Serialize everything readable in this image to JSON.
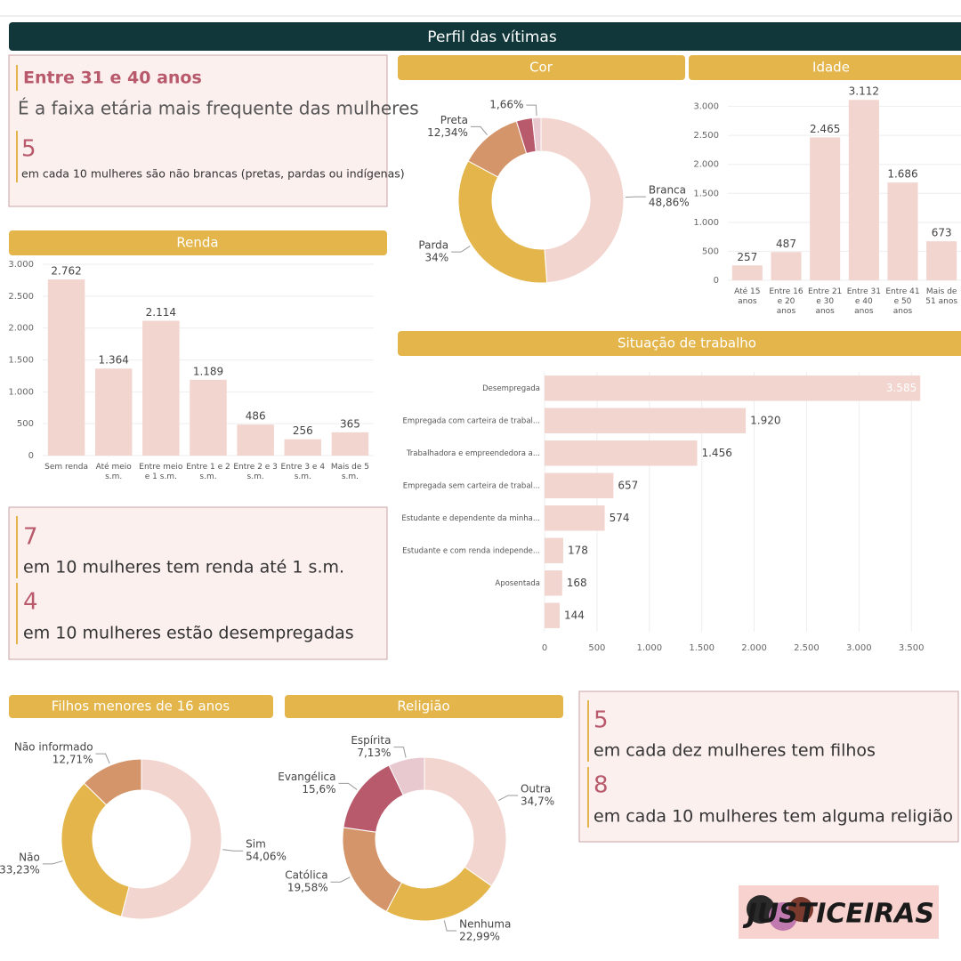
{
  "title": "Perfil das vítimas",
  "cards": [
    {
      "items": [
        {
          "number": "Entre 31 e 40 anos",
          "text": "É a faixa etária mais frequente das mulheres"
        },
        {
          "number": "5",
          "text": "em cada 10 mulheres são não brancas (pretas, pardas ou indígenas)"
        }
      ]
    },
    {
      "items": [
        {
          "number": "7",
          "text": "em 10 mulheres tem renda até 1 s.m."
        },
        {
          "number": "4",
          "text": "em 10 mulheres estão desempregadas"
        }
      ]
    },
    {
      "items": [
        {
          "number": "5",
          "text": "em cada dez mulheres tem filhos"
        },
        {
          "number": "8",
          "text": "em cada 10 mulheres tem alguma religião"
        }
      ]
    }
  ],
  "logo": "JUSTICEIRAS",
  "chart_data": [
    {
      "type": "donut",
      "title": "Cor",
      "categories": [
        "Branca",
        "Parda",
        "Preta",
        null,
        null
      ],
      "values": [
        48.86,
        34,
        12.34,
        3.14,
        1.66
      ],
      "value_labels": [
        "48,86%",
        "34%",
        "12,34%",
        null,
        "1,66%"
      ],
      "colors": [
        "#f2d5cf",
        "#e3b54a",
        "#d4956a",
        "#b85a6c",
        "#e8c9cf"
      ]
    },
    {
      "type": "bar",
      "title": "Idade",
      "categories": [
        "Até 15 anos",
        "Entre 16 e 20 anos",
        "Entre 21 e 30 anos",
        "Entre 31 e 40 anos",
        "Entre 41 e 50 anos",
        "Mais de 51 anos"
      ],
      "values": [
        257,
        487,
        2465,
        3112,
        1686,
        673
      ],
      "value_labels": [
        "257",
        "487",
        "2.465",
        "3.112",
        "1.686",
        "673"
      ],
      "color": "#f2d5cf",
      "ylim": [
        0,
        3300
      ],
      "yticks": [
        0,
        500,
        {
          "value": 1000,
          "label": "1.000"
        },
        {
          "value": 1500,
          "label": "1.500"
        },
        {
          "value": 2000,
          "label": "2.000"
        },
        {
          "value": 2500,
          "label": "2.500"
        },
        {
          "value": 3000,
          "label": "3.000"
        }
      ]
    },
    {
      "type": "bar",
      "title": "Renda",
      "categories": [
        "Sem renda",
        "Até meio s.m.",
        "Entre meio e 1 s.m.",
        "Entre 1 e 2 s.m.",
        "Entre 2 e 3 s.m.",
        "Entre 3 e 4 s.m.",
        "Mais de 5 s.m."
      ],
      "values": [
        2762,
        1364,
        2114,
        1189,
        486,
        256,
        365
      ],
      "value_labels": [
        "2.762",
        "1.364",
        "2.114",
        "1.189",
        "486",
        "256",
        "365"
      ],
      "color": "#f2d5cf",
      "ylim": [
        0,
        3000
      ],
      "yticks": [
        0,
        500,
        {
          "value": 1000,
          "label": "1.000"
        },
        {
          "value": 1500,
          "label": "1.500"
        },
        {
          "value": 2000,
          "label": "2.000"
        },
        {
          "value": 2500,
          "label": "2.500"
        },
        {
          "value": 3000,
          "label": "3.000"
        }
      ]
    },
    {
      "type": "hbar",
      "title": "Situação de trabalho",
      "categories": [
        "Desempregada",
        "Empregada com carteira de trabal...",
        "Trabalhadora e empreendedora a...",
        "Empregada sem carteira de trabal...",
        "Estudante e dependente da minha...",
        "Estudante e com renda independe...",
        "Aposentada",
        null
      ],
      "values": [
        3585,
        1920,
        1456,
        657,
        574,
        178,
        168,
        144
      ],
      "value_labels": [
        "3.585",
        "1.920",
        "1.456",
        "657",
        "574",
        "178",
        "168",
        "144"
      ],
      "color": "#f2d5cf",
      "xlim": [
        0,
        3600
      ],
      "grid": true,
      "xticks": [
        0,
        500,
        {
          "value": 1000,
          "label": "1.000"
        },
        {
          "value": 1500,
          "label": "1.500"
        },
        {
          "value": 2000,
          "label": "2.000"
        },
        {
          "value": 2500,
          "label": "2.500"
        },
        {
          "value": 3000,
          "label": "3.000"
        },
        {
          "value": 3500,
          "label": "3.500"
        }
      ]
    },
    {
      "type": "donut",
      "title": "Filhos menores de 16 anos",
      "categories": [
        "Sim",
        "Não",
        "Não informado"
      ],
      "values": [
        54.06,
        33.23,
        12.71
      ],
      "value_labels": [
        "54,06%",
        "33,23%",
        "12,71%"
      ],
      "colors": [
        "#f2d5cf",
        "#e3b54a",
        "#d4956a"
      ]
    },
    {
      "type": "donut",
      "title": "Religião",
      "categories": [
        "Outra",
        "Nenhuma",
        "Católica",
        "Evangélica",
        "Espírita"
      ],
      "values": [
        34.7,
        22.99,
        19.58,
        15.6,
        7.13
      ],
      "value_labels": [
        "34,7%",
        "22,99%",
        "19,58%",
        "15,6%",
        "7,13%"
      ],
      "colors": [
        "#f2d5cf",
        "#e3b54a",
        "#d4956a",
        "#b85a6c",
        "#e8c9cf"
      ]
    }
  ]
}
